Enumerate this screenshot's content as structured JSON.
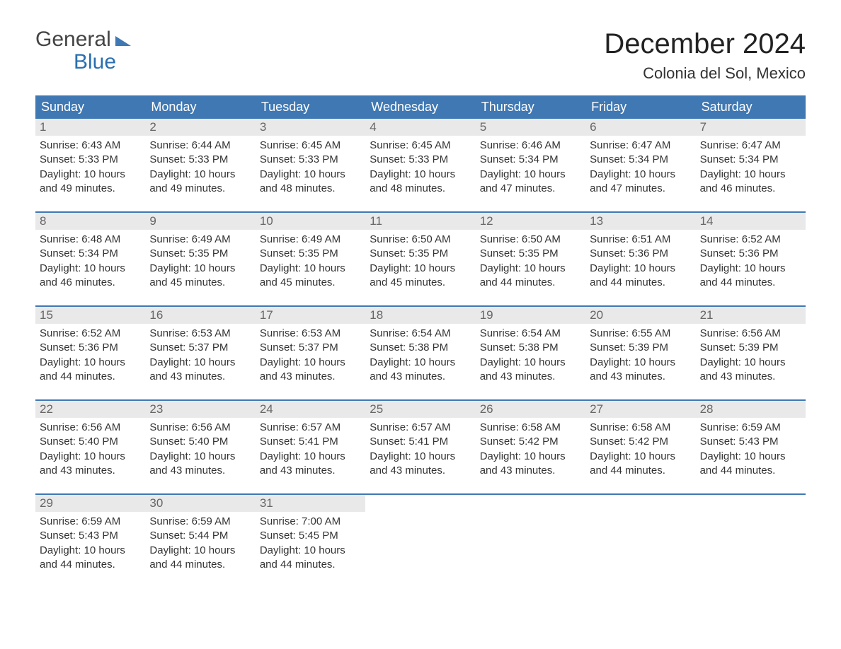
{
  "logo": {
    "line1": "General",
    "line2": "Blue"
  },
  "header": {
    "month": "December 2024",
    "location": "Colonia del Sol, Mexico"
  },
  "colors": {
    "header_bg": "#3f78b3",
    "header_text": "#ffffff",
    "day_num_bg": "#e9e9e9",
    "text": "#333333",
    "accent": "#2a6fb0",
    "background": "#ffffff"
  },
  "weekdays": [
    "Sunday",
    "Monday",
    "Tuesday",
    "Wednesday",
    "Thursday",
    "Friday",
    "Saturday"
  ],
  "layout": {
    "type": "calendar",
    "columns": 7,
    "rows": 5,
    "font_family": "Arial",
    "title_fontsize_pt": 30,
    "location_fontsize_pt": 16,
    "weekday_fontsize_pt": 13,
    "cell_fontsize_pt": 11
  },
  "days": [
    {
      "n": "1",
      "sunrise": "Sunrise: 6:43 AM",
      "sunset": "Sunset: 5:33 PM",
      "d1": "Daylight: 10 hours",
      "d2": "and 49 minutes."
    },
    {
      "n": "2",
      "sunrise": "Sunrise: 6:44 AM",
      "sunset": "Sunset: 5:33 PM",
      "d1": "Daylight: 10 hours",
      "d2": "and 49 minutes."
    },
    {
      "n": "3",
      "sunrise": "Sunrise: 6:45 AM",
      "sunset": "Sunset: 5:33 PM",
      "d1": "Daylight: 10 hours",
      "d2": "and 48 minutes."
    },
    {
      "n": "4",
      "sunrise": "Sunrise: 6:45 AM",
      "sunset": "Sunset: 5:33 PM",
      "d1": "Daylight: 10 hours",
      "d2": "and 48 minutes."
    },
    {
      "n": "5",
      "sunrise": "Sunrise: 6:46 AM",
      "sunset": "Sunset: 5:34 PM",
      "d1": "Daylight: 10 hours",
      "d2": "and 47 minutes."
    },
    {
      "n": "6",
      "sunrise": "Sunrise: 6:47 AM",
      "sunset": "Sunset: 5:34 PM",
      "d1": "Daylight: 10 hours",
      "d2": "and 47 minutes."
    },
    {
      "n": "7",
      "sunrise": "Sunrise: 6:47 AM",
      "sunset": "Sunset: 5:34 PM",
      "d1": "Daylight: 10 hours",
      "d2": "and 46 minutes."
    },
    {
      "n": "8",
      "sunrise": "Sunrise: 6:48 AM",
      "sunset": "Sunset: 5:34 PM",
      "d1": "Daylight: 10 hours",
      "d2": "and 46 minutes."
    },
    {
      "n": "9",
      "sunrise": "Sunrise: 6:49 AM",
      "sunset": "Sunset: 5:35 PM",
      "d1": "Daylight: 10 hours",
      "d2": "and 45 minutes."
    },
    {
      "n": "10",
      "sunrise": "Sunrise: 6:49 AM",
      "sunset": "Sunset: 5:35 PM",
      "d1": "Daylight: 10 hours",
      "d2": "and 45 minutes."
    },
    {
      "n": "11",
      "sunrise": "Sunrise: 6:50 AM",
      "sunset": "Sunset: 5:35 PM",
      "d1": "Daylight: 10 hours",
      "d2": "and 45 minutes."
    },
    {
      "n": "12",
      "sunrise": "Sunrise: 6:50 AM",
      "sunset": "Sunset: 5:35 PM",
      "d1": "Daylight: 10 hours",
      "d2": "and 44 minutes."
    },
    {
      "n": "13",
      "sunrise": "Sunrise: 6:51 AM",
      "sunset": "Sunset: 5:36 PM",
      "d1": "Daylight: 10 hours",
      "d2": "and 44 minutes."
    },
    {
      "n": "14",
      "sunrise": "Sunrise: 6:52 AM",
      "sunset": "Sunset: 5:36 PM",
      "d1": "Daylight: 10 hours",
      "d2": "and 44 minutes."
    },
    {
      "n": "15",
      "sunrise": "Sunrise: 6:52 AM",
      "sunset": "Sunset: 5:36 PM",
      "d1": "Daylight: 10 hours",
      "d2": "and 44 minutes."
    },
    {
      "n": "16",
      "sunrise": "Sunrise: 6:53 AM",
      "sunset": "Sunset: 5:37 PM",
      "d1": "Daylight: 10 hours",
      "d2": "and 43 minutes."
    },
    {
      "n": "17",
      "sunrise": "Sunrise: 6:53 AM",
      "sunset": "Sunset: 5:37 PM",
      "d1": "Daylight: 10 hours",
      "d2": "and 43 minutes."
    },
    {
      "n": "18",
      "sunrise": "Sunrise: 6:54 AM",
      "sunset": "Sunset: 5:38 PM",
      "d1": "Daylight: 10 hours",
      "d2": "and 43 minutes."
    },
    {
      "n": "19",
      "sunrise": "Sunrise: 6:54 AM",
      "sunset": "Sunset: 5:38 PM",
      "d1": "Daylight: 10 hours",
      "d2": "and 43 minutes."
    },
    {
      "n": "20",
      "sunrise": "Sunrise: 6:55 AM",
      "sunset": "Sunset: 5:39 PM",
      "d1": "Daylight: 10 hours",
      "d2": "and 43 minutes."
    },
    {
      "n": "21",
      "sunrise": "Sunrise: 6:56 AM",
      "sunset": "Sunset: 5:39 PM",
      "d1": "Daylight: 10 hours",
      "d2": "and 43 minutes."
    },
    {
      "n": "22",
      "sunrise": "Sunrise: 6:56 AM",
      "sunset": "Sunset: 5:40 PM",
      "d1": "Daylight: 10 hours",
      "d2": "and 43 minutes."
    },
    {
      "n": "23",
      "sunrise": "Sunrise: 6:56 AM",
      "sunset": "Sunset: 5:40 PM",
      "d1": "Daylight: 10 hours",
      "d2": "and 43 minutes."
    },
    {
      "n": "24",
      "sunrise": "Sunrise: 6:57 AM",
      "sunset": "Sunset: 5:41 PM",
      "d1": "Daylight: 10 hours",
      "d2": "and 43 minutes."
    },
    {
      "n": "25",
      "sunrise": "Sunrise: 6:57 AM",
      "sunset": "Sunset: 5:41 PM",
      "d1": "Daylight: 10 hours",
      "d2": "and 43 minutes."
    },
    {
      "n": "26",
      "sunrise": "Sunrise: 6:58 AM",
      "sunset": "Sunset: 5:42 PM",
      "d1": "Daylight: 10 hours",
      "d2": "and 43 minutes."
    },
    {
      "n": "27",
      "sunrise": "Sunrise: 6:58 AM",
      "sunset": "Sunset: 5:42 PM",
      "d1": "Daylight: 10 hours",
      "d2": "and 44 minutes."
    },
    {
      "n": "28",
      "sunrise": "Sunrise: 6:59 AM",
      "sunset": "Sunset: 5:43 PM",
      "d1": "Daylight: 10 hours",
      "d2": "and 44 minutes."
    },
    {
      "n": "29",
      "sunrise": "Sunrise: 6:59 AM",
      "sunset": "Sunset: 5:43 PM",
      "d1": "Daylight: 10 hours",
      "d2": "and 44 minutes."
    },
    {
      "n": "30",
      "sunrise": "Sunrise: 6:59 AM",
      "sunset": "Sunset: 5:44 PM",
      "d1": "Daylight: 10 hours",
      "d2": "and 44 minutes."
    },
    {
      "n": "31",
      "sunrise": "Sunrise: 7:00 AM",
      "sunset": "Sunset: 5:45 PM",
      "d1": "Daylight: 10 hours",
      "d2": "and 44 minutes."
    }
  ]
}
